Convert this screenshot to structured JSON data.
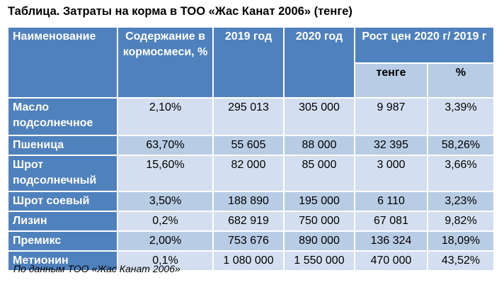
{
  "title": "Таблица. Затраты на корма в ТОО «Жас Канат 2006» (тенге)",
  "table": {
    "header": {
      "name": "Наименование",
      "content": "Содержание в кормосмеси, %",
      "y2019": "2019 год",
      "y2020": "2020 год",
      "growth": "Рост цен 2020 г/ 2019 г",
      "growth_tenge": "тенге",
      "growth_pct": "%"
    },
    "rows": [
      [
        "Масло подсолнечное",
        "2,10%",
        "295 013",
        "305 000",
        "9 987",
        "3,39%"
      ],
      [
        "Пшеница",
        "63,70%",
        "55 605",
        "88 000",
        "32 395",
        "58,26%"
      ],
      [
        "Шрот подсолнечный",
        "15,60%",
        "82 000",
        "85 000",
        "3 000",
        "3,66%"
      ],
      [
        "Шрот соевый",
        "3,50%",
        "188 890",
        "195 000",
        "6 110",
        "3,23%"
      ],
      [
        "Лизин",
        "0,2%",
        "682 919",
        "750 000",
        "67 081",
        "9,82%"
      ],
      [
        "Премикс",
        "2,00%",
        "753 676",
        "890 000",
        "136 324",
        "18,09%"
      ],
      [
        "Метионин",
        "0,1%",
        "1 080 000",
        "1 550 000",
        "470 000",
        "43,52%"
      ]
    ]
  },
  "source": "По данным ТОО «Жас Канат 2006»"
}
